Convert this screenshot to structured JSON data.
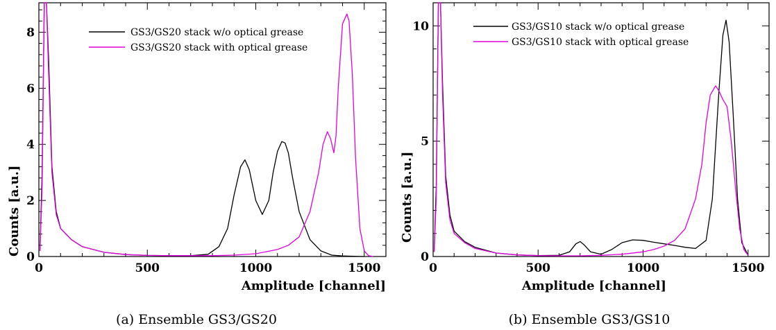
{
  "chart_data": [
    {
      "type": "line",
      "caption": "(a) Ensemble GS3/GS20",
      "xlabel": "Amplitude [channel]",
      "ylabel": "Counts [a.u.]",
      "xlim": [
        0,
        1600
      ],
      "ylim": [
        0,
        9.05
      ],
      "xticks": [
        0,
        500,
        1000,
        1500
      ],
      "yticks": [
        0,
        2,
        4,
        6,
        8
      ],
      "legend_position": "top-center",
      "series": [
        {
          "name": "GS3/GS20 stack w/o optical grease",
          "color": "#000000",
          "x": [
            5,
            15,
            25,
            35,
            45,
            60,
            80,
            100,
            150,
            200,
            300,
            400,
            500,
            600,
            700,
            780,
            830,
            870,
            900,
            930,
            950,
            970,
            1000,
            1030,
            1060,
            1080,
            1100,
            1120,
            1135,
            1150,
            1170,
            1200,
            1250,
            1300,
            1350,
            1400,
            1450,
            1500
          ],
          "y": [
            0.2,
            3.0,
            9.05,
            9.05,
            7.0,
            3.2,
            1.6,
            1.0,
            0.6,
            0.35,
            0.15,
            0.07,
            0.04,
            0.03,
            0.03,
            0.08,
            0.35,
            1.0,
            2.2,
            3.2,
            3.45,
            3.1,
            2.0,
            1.5,
            2.0,
            3.0,
            3.75,
            4.1,
            4.05,
            3.7,
            2.8,
            1.6,
            0.6,
            0.2,
            0.05,
            0.02,
            0.01,
            0.0
          ]
        },
        {
          "name": "GS3/GS20 stack with optical grease",
          "color": "#e000e0",
          "x": [
            5,
            15,
            25,
            35,
            45,
            60,
            80,
            100,
            150,
            200,
            300,
            400,
            500,
            600,
            700,
            800,
            900,
            1000,
            1100,
            1150,
            1200,
            1250,
            1290,
            1310,
            1330,
            1345,
            1360,
            1370,
            1380,
            1400,
            1420,
            1430,
            1445,
            1460,
            1480,
            1500,
            1520,
            1540
          ],
          "y": [
            0.2,
            2.5,
            9.05,
            9.05,
            6.5,
            3.0,
            1.5,
            1.0,
            0.6,
            0.35,
            0.15,
            0.07,
            0.04,
            0.03,
            0.03,
            0.03,
            0.05,
            0.1,
            0.25,
            0.4,
            0.7,
            1.6,
            3.0,
            4.0,
            4.45,
            4.2,
            3.7,
            4.3,
            6.0,
            8.3,
            8.65,
            8.4,
            6.5,
            3.5,
            1.0,
            0.2,
            0.03,
            0.0
          ]
        }
      ]
    },
    {
      "type": "line",
      "caption": "(b) Ensemble GS3/GS10",
      "xlabel": "Amplitude [channel]",
      "ylabel": "Counts [a.u.]",
      "xlim": [
        0,
        1600
      ],
      "ylim": [
        0,
        11.0
      ],
      "xticks": [
        0,
        500,
        1000,
        1500
      ],
      "yticks": [
        0,
        5,
        10
      ],
      "legend_position": "top-center",
      "series": [
        {
          "name": "GS3/GS10 stack w/o optical grease",
          "color": "#000000",
          "x": [
            5,
            15,
            25,
            35,
            45,
            60,
            80,
            100,
            150,
            200,
            300,
            400,
            500,
            600,
            650,
            680,
            700,
            720,
            750,
            800,
            850,
            900,
            950,
            1000,
            1050,
            1100,
            1150,
            1200,
            1250,
            1300,
            1330,
            1360,
            1380,
            1395,
            1410,
            1430,
            1450,
            1470,
            1500
          ],
          "y": [
            0.2,
            3.0,
            11.0,
            11.0,
            7.5,
            3.5,
            1.8,
            1.1,
            0.65,
            0.4,
            0.15,
            0.07,
            0.04,
            0.05,
            0.2,
            0.55,
            0.65,
            0.5,
            0.2,
            0.1,
            0.3,
            0.6,
            0.72,
            0.7,
            0.62,
            0.55,
            0.48,
            0.4,
            0.35,
            0.7,
            2.5,
            7.0,
            9.6,
            10.25,
            9.3,
            6.0,
            2.5,
            0.6,
            0.05
          ]
        },
        {
          "name": "GS3/GS10 stack with optical grease",
          "color": "#e000e0",
          "x": [
            5,
            15,
            25,
            35,
            45,
            60,
            80,
            100,
            150,
            200,
            300,
            400,
            500,
            600,
            700,
            800,
            900,
            1000,
            1050,
            1100,
            1150,
            1200,
            1250,
            1280,
            1300,
            1320,
            1345,
            1360,
            1380,
            1400,
            1420,
            1440,
            1460,
            1480,
            1500
          ],
          "y": [
            0.2,
            2.5,
            11.0,
            11.0,
            7.0,
            3.2,
            1.6,
            1.0,
            0.6,
            0.35,
            0.15,
            0.07,
            0.04,
            0.03,
            0.03,
            0.05,
            0.1,
            0.2,
            0.3,
            0.45,
            0.7,
            1.2,
            2.5,
            4.0,
            5.8,
            7.0,
            7.4,
            7.2,
            6.8,
            6.5,
            5.0,
            3.0,
            1.2,
            0.3,
            0.05
          ]
        }
      ]
    }
  ]
}
